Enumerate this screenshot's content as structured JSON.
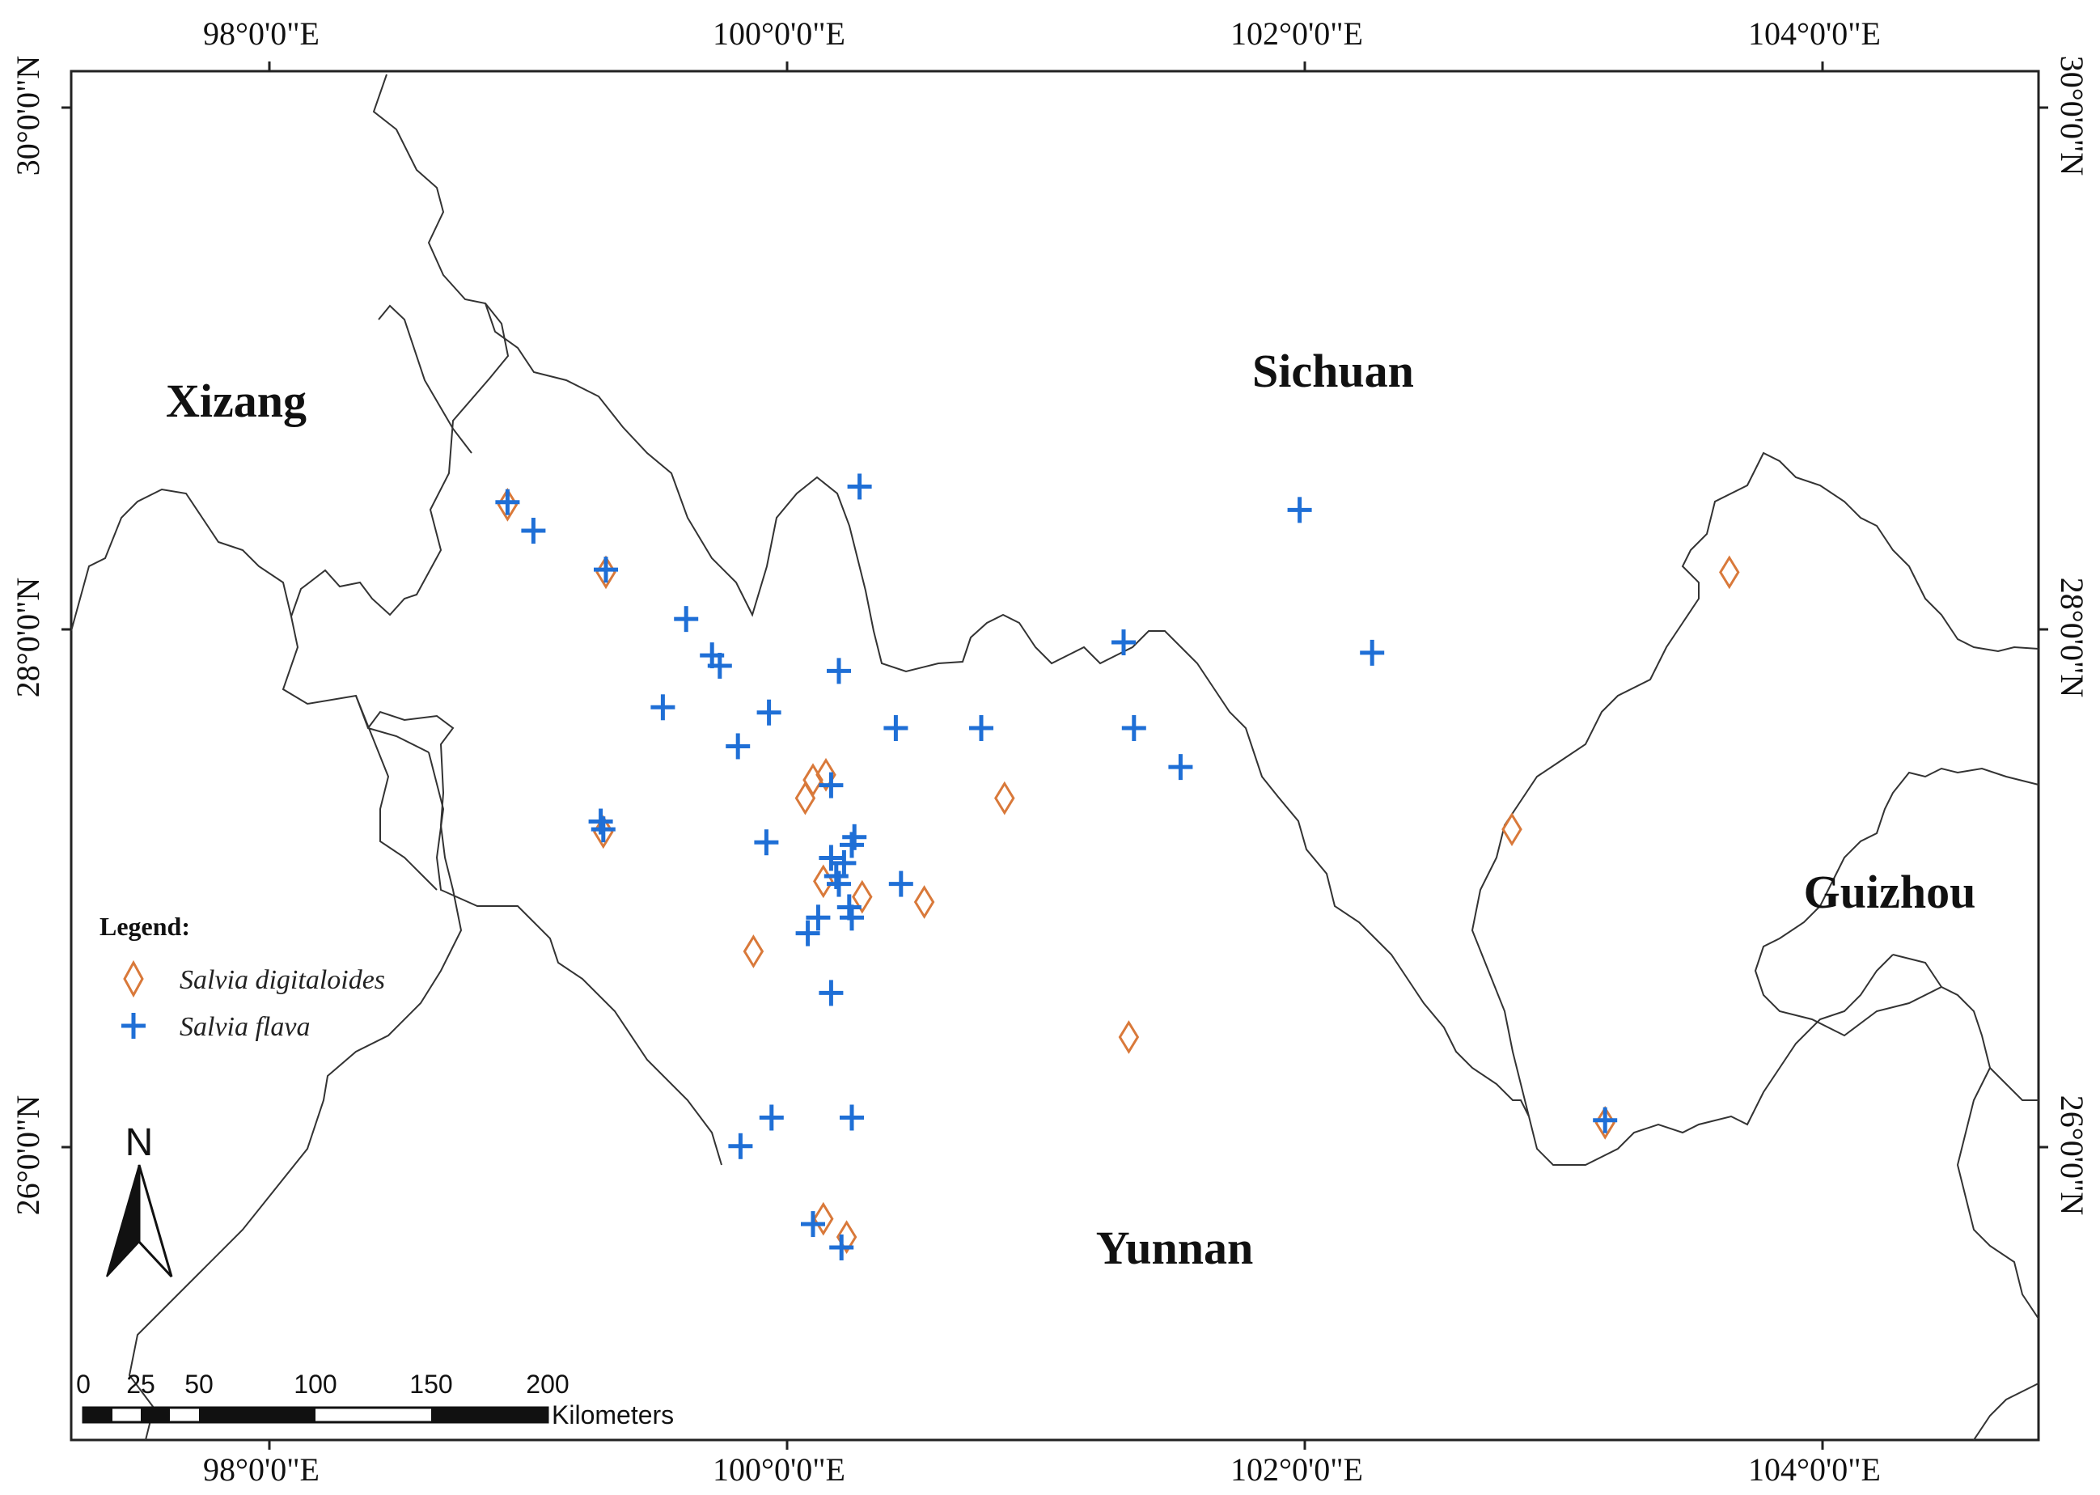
{
  "axes": {
    "lon_ticks": [
      "98°0'0\"E",
      "100°0'0\"E",
      "102°0'0\"E",
      "104°0'0\"E"
    ],
    "lat_ticks": [
      "30°0'0\"N",
      "28°0'0\"N",
      "26°0'0\"N"
    ]
  },
  "regions": {
    "xizang": "Xizang",
    "sichuan": "Sichuan",
    "guizhou": "Guizhou",
    "yunnan": "Yunnan"
  },
  "legend": {
    "title": "Legend:",
    "items": [
      {
        "label": "Salvia digitaloides",
        "symbol": "diamond",
        "color": "#d9793a"
      },
      {
        "label": "Salvia flava",
        "symbol": "cross",
        "color": "#1f6fd6"
      }
    ]
  },
  "north_arrow": {
    "label": "N"
  },
  "scale_bar": {
    "ticks": [
      "0",
      "25",
      "50",
      "100",
      "150",
      "200"
    ],
    "unit": "Kilometers"
  },
  "colors": {
    "digitaloides": "#d9793a",
    "flava": "#1f6fd6"
  },
  "occurrences": {
    "salvia_flava": [
      {
        "lon": 98.92,
        "lat": 28.49
      },
      {
        "lon": 99.02,
        "lat": 28.38
      },
      {
        "lon": 99.3,
        "lat": 28.23
      },
      {
        "lon": 99.61,
        "lat": 28.04
      },
      {
        "lon": 99.71,
        "lat": 27.9
      },
      {
        "lon": 99.74,
        "lat": 27.86
      },
      {
        "lon": 99.52,
        "lat": 27.7
      },
      {
        "lon": 99.93,
        "lat": 27.68
      },
      {
        "lon": 99.81,
        "lat": 27.55
      },
      {
        "lon": 100.28,
        "lat": 28.55
      },
      {
        "lon": 100.2,
        "lat": 27.84
      },
      {
        "lon": 100.42,
        "lat": 27.62
      },
      {
        "lon": 100.75,
        "lat": 27.62
      },
      {
        "lon": 101.3,
        "lat": 27.95
      },
      {
        "lon": 101.34,
        "lat": 27.62
      },
      {
        "lon": 101.52,
        "lat": 27.47
      },
      {
        "lon": 101.98,
        "lat": 28.46
      },
      {
        "lon": 102.26,
        "lat": 27.91
      },
      {
        "lon": 99.28,
        "lat": 27.26
      },
      {
        "lon": 99.29,
        "lat": 27.23
      },
      {
        "lon": 99.92,
        "lat": 27.18
      },
      {
        "lon": 100.17,
        "lat": 27.4
      },
      {
        "lon": 100.26,
        "lat": 27.2
      },
      {
        "lon": 100.25,
        "lat": 27.17
      },
      {
        "lon": 100.22,
        "lat": 27.1
      },
      {
        "lon": 100.17,
        "lat": 27.12
      },
      {
        "lon": 100.19,
        "lat": 27.05
      },
      {
        "lon": 100.2,
        "lat": 27.02
      },
      {
        "lon": 100.24,
        "lat": 26.93
      },
      {
        "lon": 100.25,
        "lat": 26.89
      },
      {
        "lon": 100.12,
        "lat": 26.89
      },
      {
        "lon": 100.08,
        "lat": 26.83
      },
      {
        "lon": 100.44,
        "lat": 27.02
      },
      {
        "lon": 100.17,
        "lat": 26.6
      },
      {
        "lon": 99.94,
        "lat": 26.12
      },
      {
        "lon": 100.25,
        "lat": 26.12
      },
      {
        "lon": 99.82,
        "lat": 26.01
      },
      {
        "lon": 100.1,
        "lat": 25.71
      },
      {
        "lon": 100.21,
        "lat": 25.62
      },
      {
        "lon": 103.16,
        "lat": 26.11
      }
    ],
    "salvia_digitaloides": [
      {
        "lon": 98.92,
        "lat": 28.48
      },
      {
        "lon": 99.3,
        "lat": 28.22
      },
      {
        "lon": 99.29,
        "lat": 27.22
      },
      {
        "lon": 100.1,
        "lat": 27.42
      },
      {
        "lon": 100.15,
        "lat": 27.44
      },
      {
        "lon": 100.07,
        "lat": 27.35
      },
      {
        "lon": 100.84,
        "lat": 27.35
      },
      {
        "lon": 100.14,
        "lat": 27.03
      },
      {
        "lon": 100.29,
        "lat": 26.97
      },
      {
        "lon": 100.53,
        "lat": 26.95
      },
      {
        "lon": 99.87,
        "lat": 26.76
      },
      {
        "lon": 101.32,
        "lat": 26.43
      },
      {
        "lon": 102.8,
        "lat": 27.23
      },
      {
        "lon": 103.64,
        "lat": 28.22
      },
      {
        "lon": 100.14,
        "lat": 25.73
      },
      {
        "lon": 100.23,
        "lat": 25.66
      },
      {
        "lon": 103.16,
        "lat": 26.1
      }
    ]
  }
}
